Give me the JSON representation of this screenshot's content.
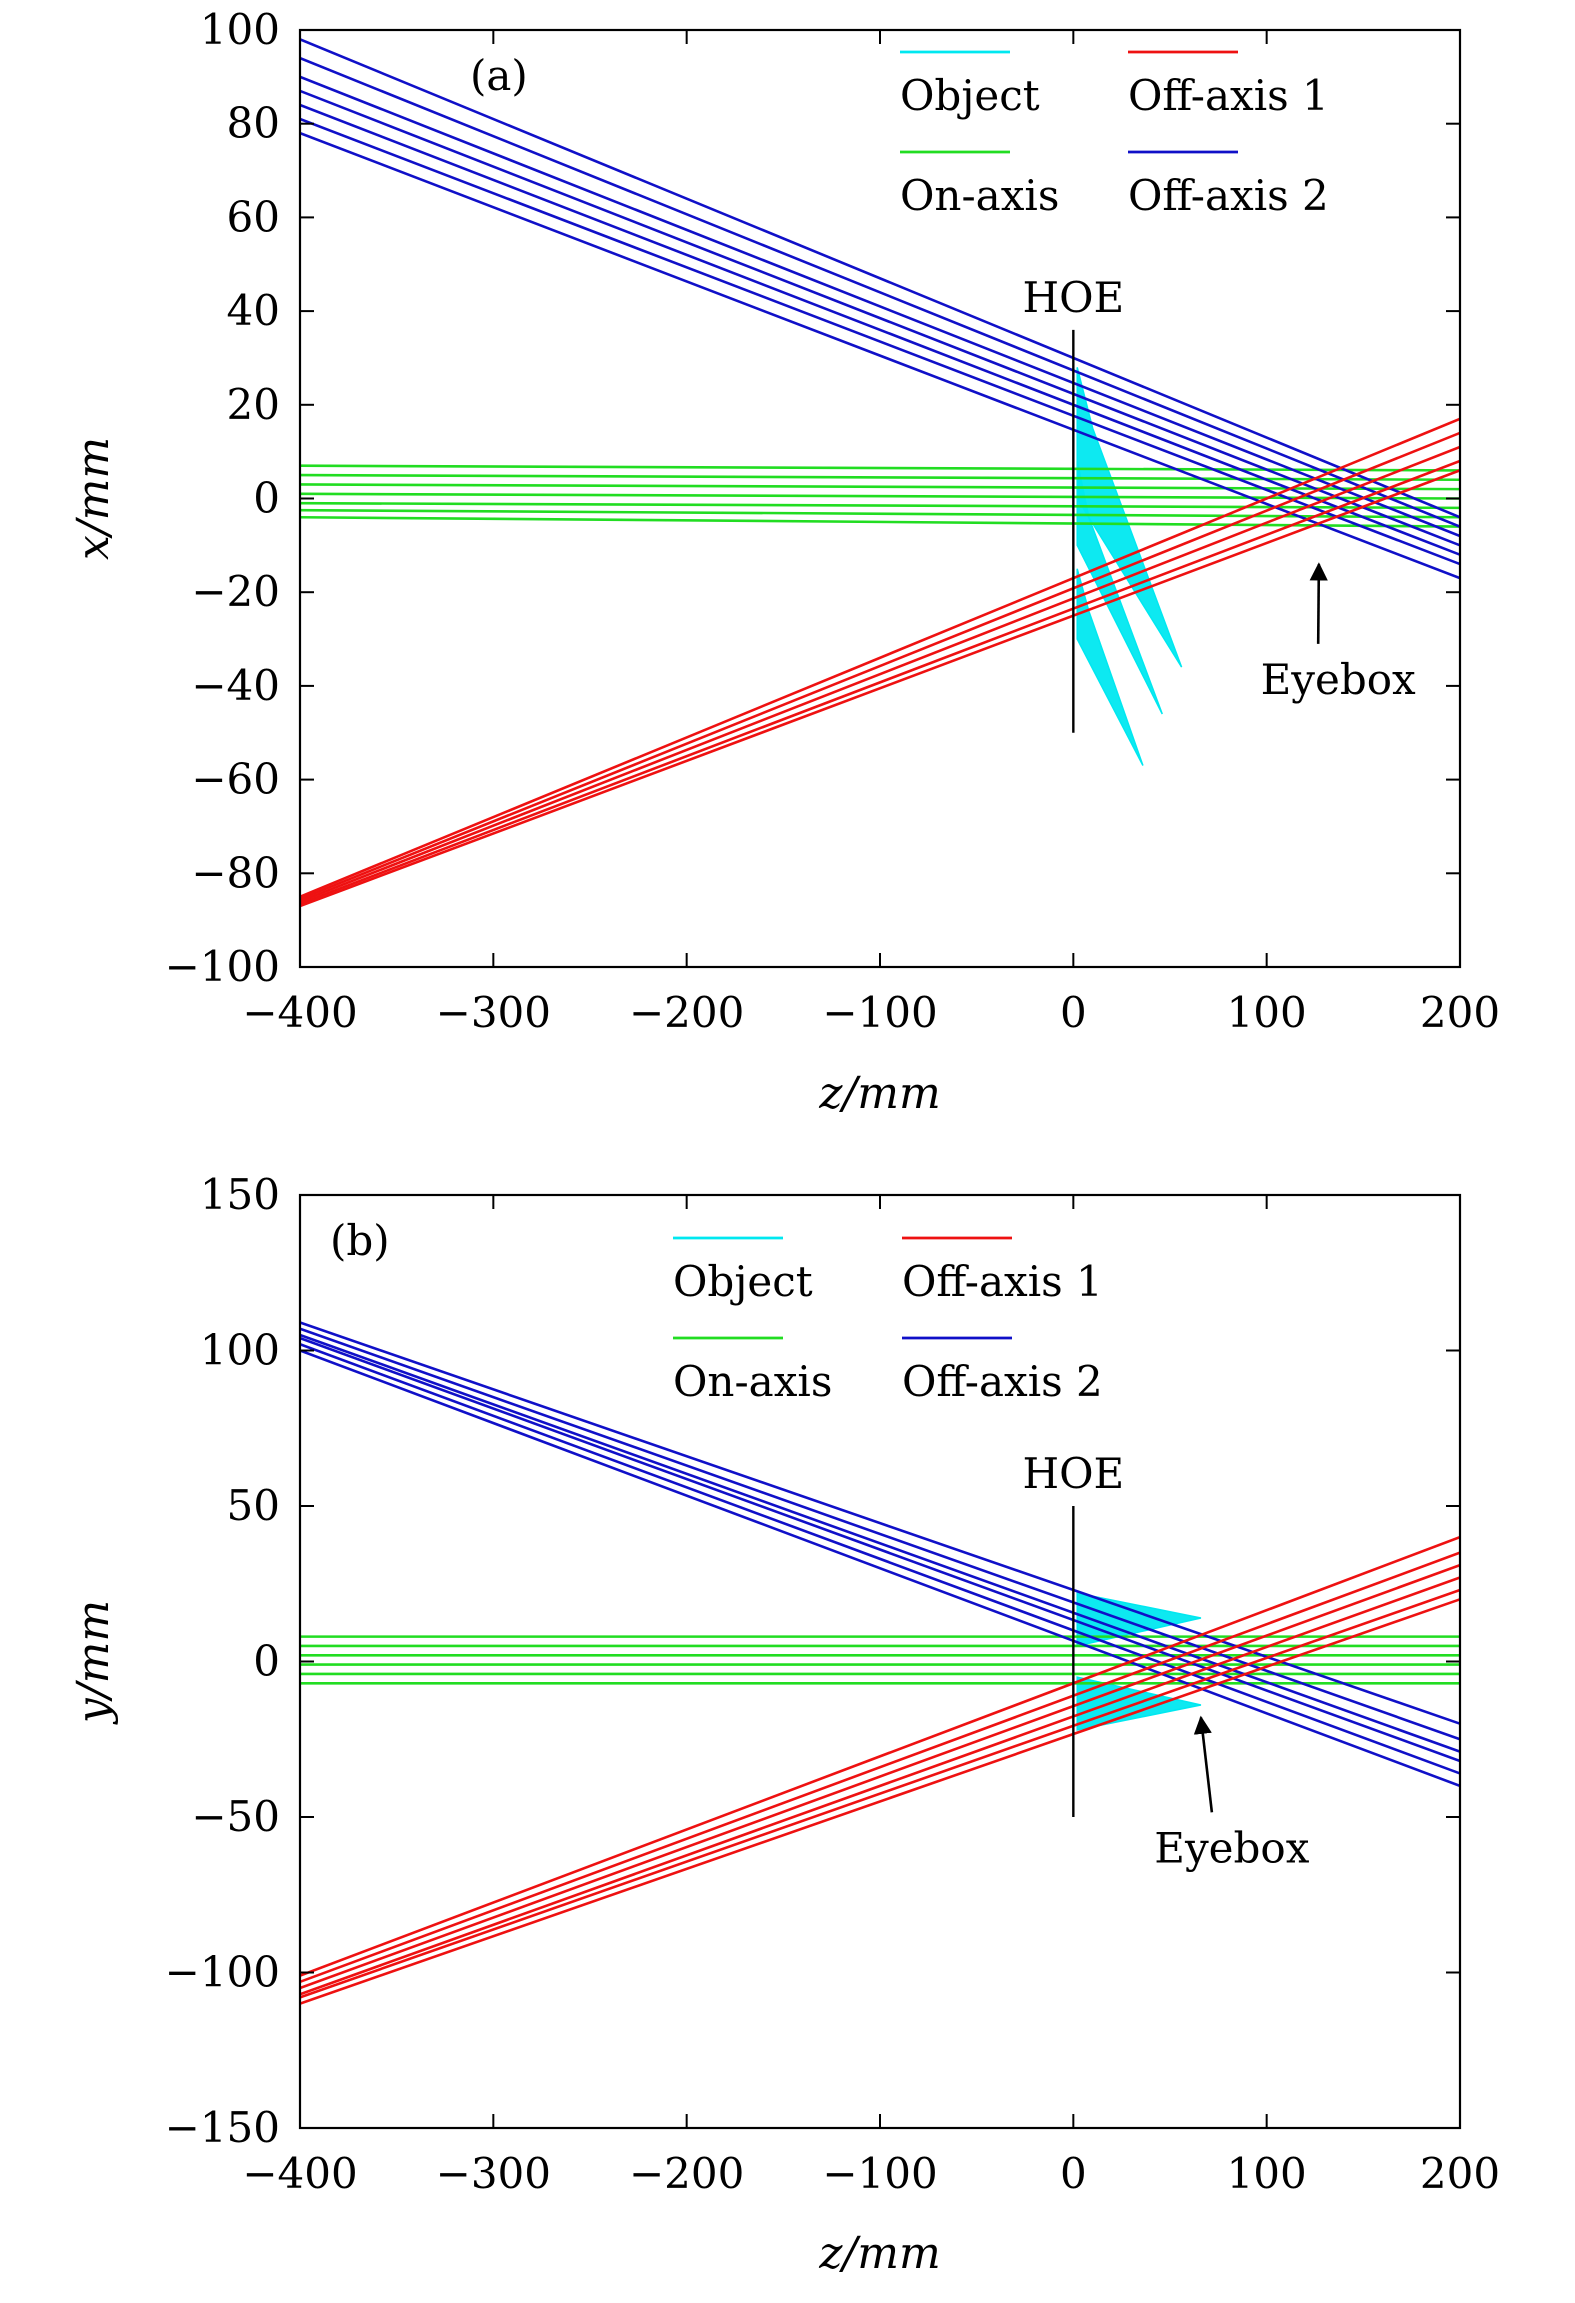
{
  "chart_data": [
    {
      "type": "line",
      "panel_label": "(a)",
      "xlabel": "z/mm",
      "ylabel": "x/mm",
      "xlim": [
        -400,
        200
      ],
      "ylim": [
        -100,
        100
      ],
      "xticks": [
        -400,
        -300,
        -200,
        -100,
        0,
        100,
        200
      ],
      "yticks": [
        -100,
        -80,
        -60,
        -40,
        -20,
        0,
        20,
        40,
        60,
        80,
        100
      ],
      "xtick_labels": [
        "−400",
        "−300",
        "−200",
        "−100",
        "0",
        "100",
        "200"
      ],
      "ytick_labels": [
        "−100",
        "−80",
        "−60",
        "−40",
        "−20",
        "0",
        "20",
        "40",
        "60",
        "80",
        "100"
      ],
      "legend": [
        "Object",
        "Off-axis 1",
        "On-axis",
        "Off-axis 2"
      ],
      "legend_position": "top-right",
      "hoe": {
        "label": "HOE",
        "z": 0,
        "range": [
          -50,
          36
        ]
      },
      "eyebox": {
        "label": "Eyebox",
        "point": [
          127,
          -14
        ],
        "text_at": [
          137,
          -40
        ]
      },
      "series": [
        {
          "name": "On-axis",
          "color": "#22dd22",
          "rays": [
            {
              "x": [
                -400,
                200
              ],
              "y": [
                7,
                6
              ]
            },
            {
              "x": [
                -400,
                200
              ],
              "y": [
                5,
                4
              ]
            },
            {
              "x": [
                -400,
                200
              ],
              "y": [
                3,
                2
              ]
            },
            {
              "x": [
                -400,
                200
              ],
              "y": [
                1,
                0
              ]
            },
            {
              "x": [
                -400,
                200
              ],
              "y": [
                -1,
                -2
              ]
            },
            {
              "x": [
                -400,
                200
              ],
              "y": [
                -2.5,
                -4
              ]
            },
            {
              "x": [
                -400,
                200
              ],
              "y": [
                -4,
                -6
              ]
            }
          ]
        },
        {
          "name": "Off-axis 2",
          "color": "#1010c8",
          "rays": [
            {
              "x": [
                -400,
                200
              ],
              "y": [
                98,
                -4
              ]
            },
            {
              "x": [
                -400,
                200
              ],
              "y": [
                94,
                -6
              ]
            },
            {
              "x": [
                -400,
                200
              ],
              "y": [
                90,
                -8
              ]
            },
            {
              "x": [
                -400,
                200
              ],
              "y": [
                87,
                -10
              ]
            },
            {
              "x": [
                -400,
                200
              ],
              "y": [
                84,
                -12
              ]
            },
            {
              "x": [
                -400,
                200
              ],
              "y": [
                81,
                -14
              ]
            },
            {
              "x": [
                -400,
                200
              ],
              "y": [
                78,
                -17
              ]
            }
          ]
        },
        {
          "name": "Off-axis 1",
          "color": "#ee1111",
          "rays": [
            {
              "x": [
                -400,
                200
              ],
              "y": [
                -85,
                17
              ]
            },
            {
              "x": [
                -400,
                200
              ],
              "y": [
                -85.5,
                14
              ]
            },
            {
              "x": [
                -400,
                200
              ],
              "y": [
                -86,
                11
              ]
            },
            {
              "x": [
                -400,
                200
              ],
              "y": [
                -86.5,
                8
              ]
            },
            {
              "x": [
                -400,
                200
              ],
              "y": [
                -87,
                6
              ]
            }
          ]
        },
        {
          "name": "Object",
          "color": "#00e8f0",
          "fans": [
            {
              "polygon": [
                [
                  2,
                  28
                ],
                [
                  10,
                  15
                ],
                [
                  56,
                  -36
                ],
                [
                  2,
                  0
                ]
              ]
            },
            {
              "polygon": [
                [
                  2,
                  8
                ],
                [
                  8,
                  -4
                ],
                [
                  46,
                  -46
                ],
                [
                  2,
                  -10
                ]
              ]
            },
            {
              "polygon": [
                [
                  2,
                  -15
                ],
                [
                  8,
                  -24
                ],
                [
                  36,
                  -57
                ],
                [
                  2,
                  -30
                ]
              ]
            }
          ]
        }
      ]
    },
    {
      "type": "line",
      "panel_label": "(b)",
      "xlabel": "z/mm",
      "ylabel": "y/mm",
      "xlim": [
        -400,
        200
      ],
      "ylim": [
        -150,
        150
      ],
      "xticks": [
        -400,
        -300,
        -200,
        -100,
        0,
        100,
        200
      ],
      "yticks": [
        -150,
        -100,
        -50,
        0,
        50,
        100,
        150
      ],
      "xtick_labels": [
        "−400",
        "−300",
        "−200",
        "−100",
        "0",
        "100",
        "200"
      ],
      "ytick_labels": [
        "−150",
        "−100",
        "−50",
        "0",
        "50",
        "100",
        "150"
      ],
      "legend": [
        "Object",
        "Off-axis 1",
        "On-axis",
        "Off-axis 2"
      ],
      "legend_position": "top-center",
      "hoe": {
        "label": "HOE",
        "z": 0,
        "range": [
          -50,
          50
        ]
      },
      "eyebox": {
        "label": "Eyebox",
        "point": [
          66,
          -18
        ],
        "text_at": [
          82,
          -62
        ]
      },
      "series": [
        {
          "name": "On-axis",
          "color": "#22dd22",
          "rays": [
            {
              "x": [
                -400,
                200
              ],
              "y": [
                8,
                8
              ]
            },
            {
              "x": [
                -400,
                200
              ],
              "y": [
                5,
                5
              ]
            },
            {
              "x": [
                -400,
                200
              ],
              "y": [
                2,
                2
              ]
            },
            {
              "x": [
                -400,
                200
              ],
              "y": [
                -1,
                -1
              ]
            },
            {
              "x": [
                -400,
                200
              ],
              "y": [
                -4,
                -4
              ]
            },
            {
              "x": [
                -400,
                200
              ],
              "y": [
                -7,
                -7
              ]
            }
          ]
        },
        {
          "name": "Off-axis 2",
          "color": "#1010c8",
          "rays": [
            {
              "x": [
                -400,
                200
              ],
              "y": [
                109,
                -20
              ]
            },
            {
              "x": [
                -400,
                200
              ],
              "y": [
                107,
                -25
              ]
            },
            {
              "x": [
                -400,
                200
              ],
              "y": [
                105,
                -29
              ]
            },
            {
              "x": [
                -400,
                200
              ],
              "y": [
                104,
                -32
              ]
            },
            {
              "x": [
                -400,
                200
              ],
              "y": [
                102,
                -36
              ]
            },
            {
              "x": [
                -400,
                200
              ],
              "y": [
                100,
                -40
              ]
            }
          ]
        },
        {
          "name": "Off-axis 1",
          "color": "#ee1111",
          "rays": [
            {
              "x": [
                -400,
                200
              ],
              "y": [
                -101,
                40
              ]
            },
            {
              "x": [
                -400,
                200
              ],
              "y": [
                -103,
                35
              ]
            },
            {
              "x": [
                -400,
                200
              ],
              "y": [
                -105,
                31
              ]
            },
            {
              "x": [
                -400,
                200
              ],
              "y": [
                -107,
                27
              ]
            },
            {
              "x": [
                -400,
                200
              ],
              "y": [
                -108,
                23
              ]
            },
            {
              "x": [
                -400,
                200
              ],
              "y": [
                -110,
                20
              ]
            }
          ]
        },
        {
          "name": "Object",
          "color": "#00e8f0",
          "fans": [
            {
              "polygon": [
                [
                  2,
                  22
                ],
                [
                  66,
                  14
                ],
                [
                  2,
                  5
                ]
              ]
            },
            {
              "polygon": [
                [
                  2,
                  -5
                ],
                [
                  66,
                  -14
                ],
                [
                  2,
                  -22
                ]
              ]
            }
          ]
        }
      ]
    }
  ]
}
